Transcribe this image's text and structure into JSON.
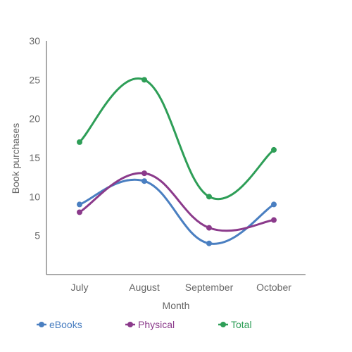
{
  "chart_data": {
    "type": "line",
    "categories": [
      "July",
      "August",
      "September",
      "October"
    ],
    "series": [
      {
        "name": "eBooks",
        "values": [
          9,
          12,
          4,
          9
        ],
        "color": "#4a7fc1"
      },
      {
        "name": "Physical",
        "values": [
          8,
          13,
          6,
          7
        ],
        "color": "#8b3a8b"
      },
      {
        "name": "Total",
        "values": [
          17,
          25,
          10,
          16
        ],
        "color": "#2e9e57"
      }
    ],
    "title": "",
    "xlabel": "Month",
    "ylabel": "Book purchases",
    "ylim": [
      0,
      30
    ],
    "yticks": [
      5,
      10,
      15,
      20,
      25,
      30
    ],
    "grid": false,
    "legend_position": "bottom",
    "smooth": true
  }
}
